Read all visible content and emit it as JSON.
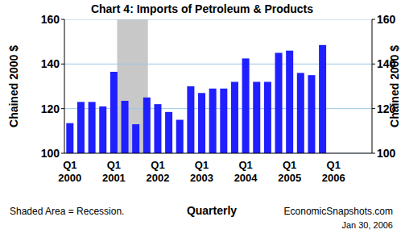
{
  "chart_data": {
    "type": "bar",
    "title": "Chart 4: Imports of Petroleum & Products",
    "y_label": "Chained 2000 $",
    "y2_label": "Chained 2000 $",
    "x_label": "Quarterly",
    "annotations": [
      "Shaded Area = Recession.",
      "EconomicSnapshots.com",
      "Jan 30, 2006"
    ],
    "categories": [
      "Q1 2000",
      null,
      null,
      null,
      "Q1 2001",
      null,
      null,
      null,
      "Q1 2002",
      null,
      null,
      null,
      "Q1 2003",
      null,
      null,
      null,
      "Q1 2004",
      null,
      null,
      null,
      "Q1 2005",
      null,
      null,
      null,
      "Q1 2006",
      null,
      null,
      null
    ],
    "values": [
      113.5,
      123,
      123,
      121,
      136.5,
      123.5,
      113,
      125,
      122,
      118.5,
      115,
      130,
      127,
      129,
      129,
      132,
      142.5,
      132,
      132,
      145,
      146,
      136,
      135,
      148.5,
      null,
      null,
      null,
      null
    ],
    "shaded_range": [
      4.8,
      7.6
    ],
    "color": "#1f1fff",
    "ylim": [
      100,
      160
    ],
    "yticks": [
      100,
      120,
      140,
      160
    ],
    "y2lim": [
      100,
      160
    ],
    "y2ticks": [
      100,
      120,
      140,
      160
    ],
    "grid": true
  }
}
